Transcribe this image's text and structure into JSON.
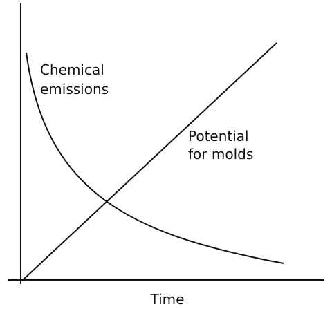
{
  "curves": [
    {
      "label": [
        "Chemical",
        "emissions"
      ]
    },
    {
      "label": [
        "Potential",
        "for molds"
      ]
    }
  ],
  "x_axis_label": "Time"
}
